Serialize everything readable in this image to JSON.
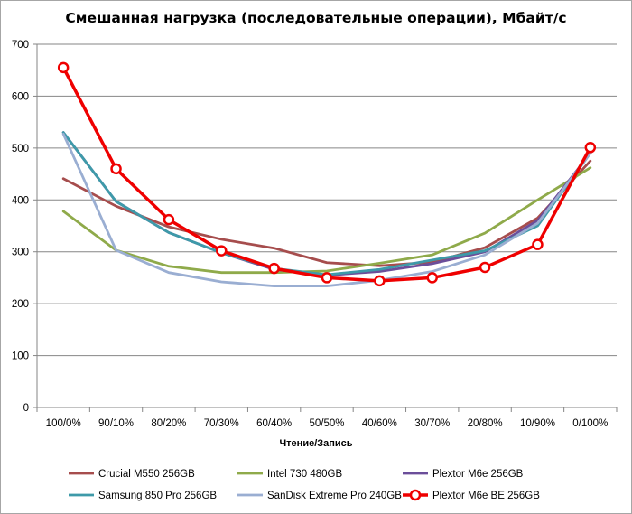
{
  "chart_data": {
    "type": "line",
    "title": "Смешанная нагрузка (последовательные операции), Мбайт/с",
    "xlabel": "Чтение/Запись",
    "ylabel": "",
    "categories": [
      "100/0%",
      "90/10%",
      "80/20%",
      "70/30%",
      "60/40%",
      "50/50%",
      "40/60%",
      "30/70%",
      "20/80%",
      "10/90%",
      "0/100%"
    ],
    "ylim": [
      0,
      700
    ],
    "yticks": [
      "0",
      "100",
      "200",
      "300",
      "400",
      "500",
      "600",
      "700"
    ],
    "grid": true,
    "legend_position": "bottom",
    "series": [
      {
        "name": "Crucial M550 256GB",
        "color": "#a64d4d",
        "marker": "none",
        "values": [
          441,
          388,
          348,
          324,
          307,
          279,
          273,
          280,
          308,
          365,
          475
        ]
      },
      {
        "name": "Intel 730 480GB",
        "color": "#8faa4a",
        "marker": "none",
        "values": [
          378,
          303,
          272,
          260,
          260,
          263,
          278,
          294,
          336,
          400,
          462
        ]
      },
      {
        "name": "Plextor M6e 256GB",
        "color": "#6b4e9a",
        "marker": "none",
        "values": [
          530,
          397,
          337,
          298,
          266,
          255,
          262,
          277,
          300,
          360,
          490
        ]
      },
      {
        "name": "Samsung 850 Pro 256GB",
        "color": "#3e9aa9",
        "marker": "none",
        "values": [
          530,
          397,
          337,
          298,
          268,
          256,
          266,
          284,
          302,
          350,
          490
        ]
      },
      {
        "name": "SanDisk Extreme Pro 240GB",
        "color": "#9aaed2",
        "marker": "none",
        "values": [
          527,
          303,
          260,
          242,
          234,
          234,
          245,
          262,
          294,
          355,
          490
        ]
      },
      {
        "name": "Plextor M6e BE 256GB",
        "color": "#ef0000",
        "marker": "circle",
        "values": [
          655,
          460,
          362,
          302,
          268,
          250,
          244,
          250,
          270,
          314,
          501
        ]
      }
    ]
  }
}
